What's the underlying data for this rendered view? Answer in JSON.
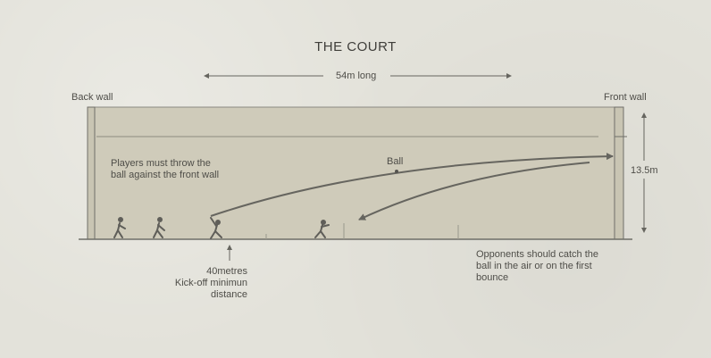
{
  "title": "THE COURT",
  "length_label": "54m long",
  "back_wall_label": "Back wall",
  "front_wall_label": "Front wall",
  "height_label": "13.5m",
  "ball_label": "Ball",
  "players_note": "Players must throw the ball against the front wall",
  "kickoff_note": [
    "40metres",
    "Kick-off minimun",
    "distance"
  ],
  "opponents_note": "Opponents should catch the ball in the air or on the first bounce",
  "colors": {
    "background": "#e3e2da",
    "court_fill": "#cfcbba",
    "wall_stroke": "#6f6e68",
    "arrow": "#66655f",
    "player": "#5f5e59"
  }
}
